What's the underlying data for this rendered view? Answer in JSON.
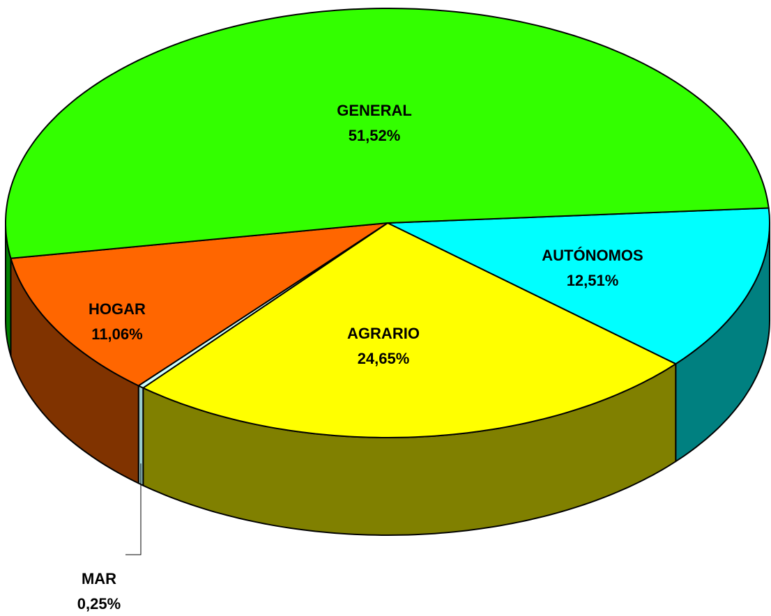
{
  "chart_data": {
    "type": "pie3d",
    "categories": [
      "AUTÓNOMOS",
      "AGRARIO",
      "MAR",
      "HOGAR",
      "GENERAL"
    ],
    "values": [
      12.51,
      24.65,
      0.25,
      11.06,
      51.52
    ],
    "value_labels": [
      "12,51%",
      "24,65%",
      "0,25%",
      "11,06%",
      "51,52%"
    ],
    "colors": [
      "#00ffff",
      "#ffff00",
      "#ccffff",
      "#ff6600",
      "#33ff00"
    ],
    "side_colors": [
      "#008080",
      "#808000",
      "#99cccc",
      "#803300",
      "#008000"
    ]
  }
}
